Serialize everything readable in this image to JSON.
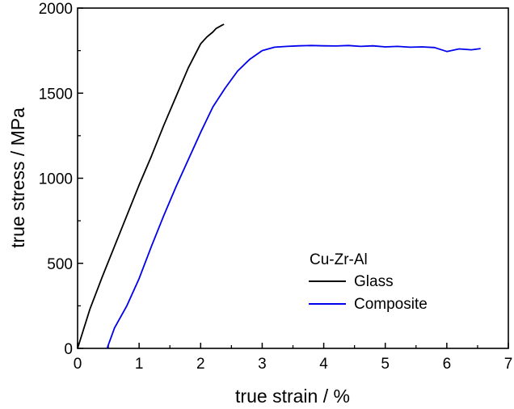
{
  "chart_data": {
    "type": "line",
    "xlabel": "true strain / %",
    "ylabel": "true stress / MPa",
    "xlim": [
      0,
      7
    ],
    "ylim": [
      0,
      2000
    ],
    "xticks": [
      0,
      1,
      2,
      3,
      4,
      5,
      6,
      7
    ],
    "yticks": [
      0,
      500,
      1000,
      1500,
      2000
    ],
    "grid": false,
    "legend": {
      "title": "Cu-Zr-Al",
      "placement": "lower-right",
      "entries": [
        "Glass",
        "Composite"
      ]
    },
    "series": [
      {
        "name": "Glass",
        "color": "#000000",
        "x": [
          0.0,
          0.2,
          0.4,
          0.6,
          0.8,
          1.0,
          1.2,
          1.4,
          1.6,
          1.8,
          2.0,
          2.1,
          2.2,
          2.25,
          2.3,
          2.35,
          2.38
        ],
        "y": [
          0,
          230,
          420,
          600,
          780,
          960,
          1130,
          1310,
          1480,
          1650,
          1790,
          1830,
          1860,
          1880,
          1890,
          1900,
          1905
        ]
      },
      {
        "name": "Composite",
        "color": "#0000ee",
        "x": [
          0.48,
          0.6,
          0.8,
          1.0,
          1.2,
          1.4,
          1.6,
          1.8,
          2.0,
          2.2,
          2.4,
          2.6,
          2.8,
          3.0,
          3.2,
          3.4,
          3.6,
          3.8,
          4.0,
          4.2,
          4.4,
          4.6,
          4.8,
          5.0,
          5.2,
          5.4,
          5.6,
          5.8,
          6.0,
          6.2,
          6.4,
          6.55
        ],
        "y": [
          0,
          120,
          250,
          410,
          600,
          780,
          950,
          1110,
          1270,
          1420,
          1530,
          1630,
          1700,
          1750,
          1770,
          1775,
          1778,
          1780,
          1778,
          1777,
          1780,
          1775,
          1778,
          1772,
          1775,
          1770,
          1772,
          1768,
          1745,
          1760,
          1755,
          1762
        ]
      }
    ]
  }
}
